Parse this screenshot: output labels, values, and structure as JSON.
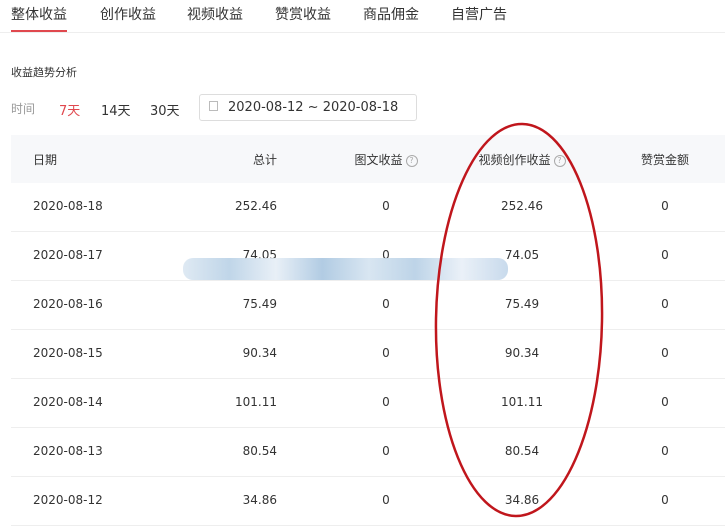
{
  "tabs": [
    "整体收益",
    "创作收益",
    "视频收益",
    "赞赏收益",
    "商品佣金",
    "自营广告"
  ],
  "active_tab": 0,
  "section_title": "收益趋势分析",
  "filter": {
    "label": "时间",
    "options": [
      "7天",
      "14天",
      "30天"
    ],
    "active": "7天",
    "date_range": "2020-08-12 ~ 2020-08-18"
  },
  "table": {
    "headers": [
      "日期",
      "总计",
      "图文收益",
      "视频创作收益",
      "赞赏金额"
    ],
    "rows": [
      [
        "2020-08-18",
        "252.46",
        "0",
        "252.46",
        "0"
      ],
      [
        "2020-08-17",
        "74.05",
        "0",
        "74.05",
        "0"
      ],
      [
        "2020-08-16",
        "75.49",
        "0",
        "75.49",
        "0"
      ],
      [
        "2020-08-15",
        "90.34",
        "0",
        "90.34",
        "0"
      ],
      [
        "2020-08-14",
        "101.11",
        "0",
        "101.11",
        "0"
      ],
      [
        "2020-08-13",
        "80.54",
        "0",
        "80.54",
        "0"
      ],
      [
        "2020-08-12",
        "34.86",
        "0",
        "34.86",
        "0"
      ]
    ]
  },
  "colors": {
    "accent": "#e0484e",
    "annotation": "#c0161c"
  }
}
